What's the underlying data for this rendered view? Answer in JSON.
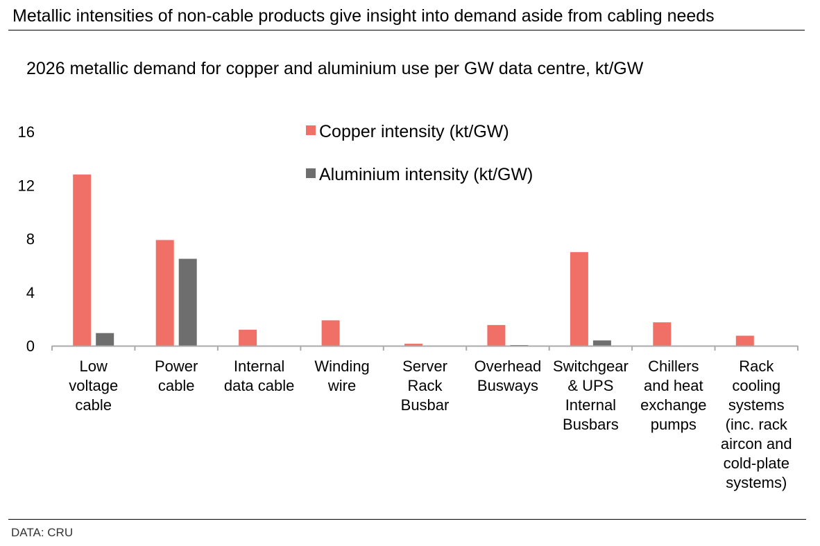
{
  "headline": "Metallic intensities of non-cable products give insight into demand aside from cabling needs",
  "subtitle": "2026 metallic demand for copper and aluminium use per GW data centre, kt/GW",
  "source": "DATA: CRU",
  "colors": {
    "copper": "#f07068",
    "aluminium": "#6e6e6e",
    "axis": "#aaaaaa",
    "text": "#000000"
  },
  "chart_data": {
    "type": "bar",
    "categories": [
      [
        "Low",
        "voltage",
        "cable"
      ],
      [
        "Power",
        "cable"
      ],
      [
        "Internal",
        "data cable"
      ],
      [
        "Winding",
        "wire"
      ],
      [
        "Server",
        "Rack",
        "Busbar"
      ],
      [
        "Overhead",
        "Busways"
      ],
      [
        "Switchgear",
        "& UPS",
        "Internal",
        "Busbars"
      ],
      [
        "Chillers",
        "and heat",
        "exchange",
        "pumps"
      ],
      [
        "Rack",
        "cooling",
        "systems",
        "(inc. rack",
        "aircon and",
        "cold-plate",
        "systems)"
      ]
    ],
    "series": [
      {
        "name": "Copper intensity (kt/GW)",
        "values": [
          12.8,
          7.9,
          1.2,
          1.9,
          0.15,
          1.55,
          7.0,
          1.75,
          0.75
        ]
      },
      {
        "name": "Aluminium intensity (kt/GW)",
        "values": [
          0.95,
          6.5,
          0,
          0,
          0,
          0.05,
          0.4,
          0,
          0
        ]
      }
    ],
    "ylim": [
      0,
      16
    ],
    "yticks": [
      0,
      4,
      8,
      12,
      16
    ],
    "grid": false,
    "legend_position": "top-center"
  }
}
